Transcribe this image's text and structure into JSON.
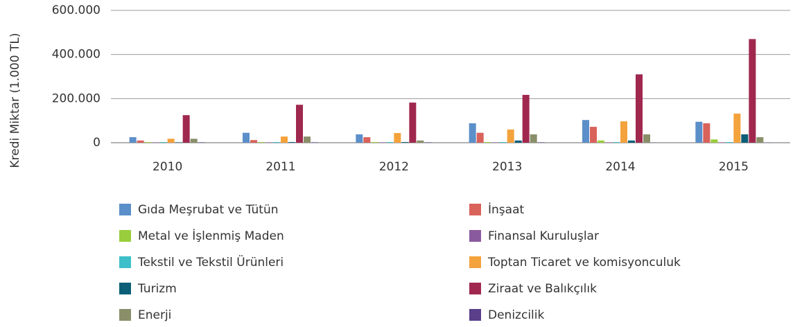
{
  "chart_data": {
    "type": "bar",
    "y_label": "Kredi Miktar (1.000 TL)",
    "categories": [
      "2010",
      "2011",
      "2012",
      "2013",
      "2014",
      "2015"
    ],
    "series": [
      {
        "name": "Gıda Meşrubat ve Tütün",
        "color": "#5b8fc9",
        "values": [
          25000,
          45000,
          38000,
          88000,
          103000,
          95000
        ]
      },
      {
        "name": "İnşaat",
        "color": "#d9625a",
        "values": [
          10000,
          12000,
          25000,
          45000,
          72000,
          88000
        ]
      },
      {
        "name": "Metal ve İşlenmiş Maden",
        "color": "#9acd3c",
        "values": [
          3000,
          3000,
          3000,
          3000,
          10000,
          15000
        ]
      },
      {
        "name": "Finansal Kuruluşlar",
        "color": "#8a5a9e",
        "values": [
          2000,
          2000,
          2000,
          2000,
          2000,
          2000
        ]
      },
      {
        "name": "Tekstil ve Tekstil Ürünleri",
        "color": "#3cbfc9",
        "values": [
          3000,
          3000,
          3000,
          3000,
          3000,
          3000
        ]
      },
      {
        "name": "Toptan Ticaret ve komisyonculuk",
        "color": "#f4a23c",
        "values": [
          18000,
          28000,
          44000,
          60000,
          97000,
          132000
        ]
      },
      {
        "name": "Turizm",
        "color": "#0a5e78",
        "values": [
          2000,
          3000,
          3000,
          10000,
          10000,
          38000
        ]
      },
      {
        "name": "Ziraat ve Balıkçılık",
        "color": "#a0284f",
        "values": [
          125000,
          172000,
          182000,
          217000,
          310000,
          470000
        ]
      },
      {
        "name": "Enerji",
        "color": "#8a8f6a",
        "values": [
          18000,
          28000,
          10000,
          38000,
          38000,
          25000
        ]
      },
      {
        "name": "Denizcilik",
        "color": "#5a3f8a",
        "values": [
          2000,
          2000,
          2000,
          2000,
          1000,
          1000
        ]
      }
    ],
    "ylim": [
      0,
      600000
    ],
    "yticks": [
      0,
      {
        "value": 200000,
        "label": "200.000"
      },
      {
        "value": 400000,
        "label": "400.000"
      },
      {
        "value": 600000,
        "label": "600.000"
      }
    ],
    "grid": true
  }
}
